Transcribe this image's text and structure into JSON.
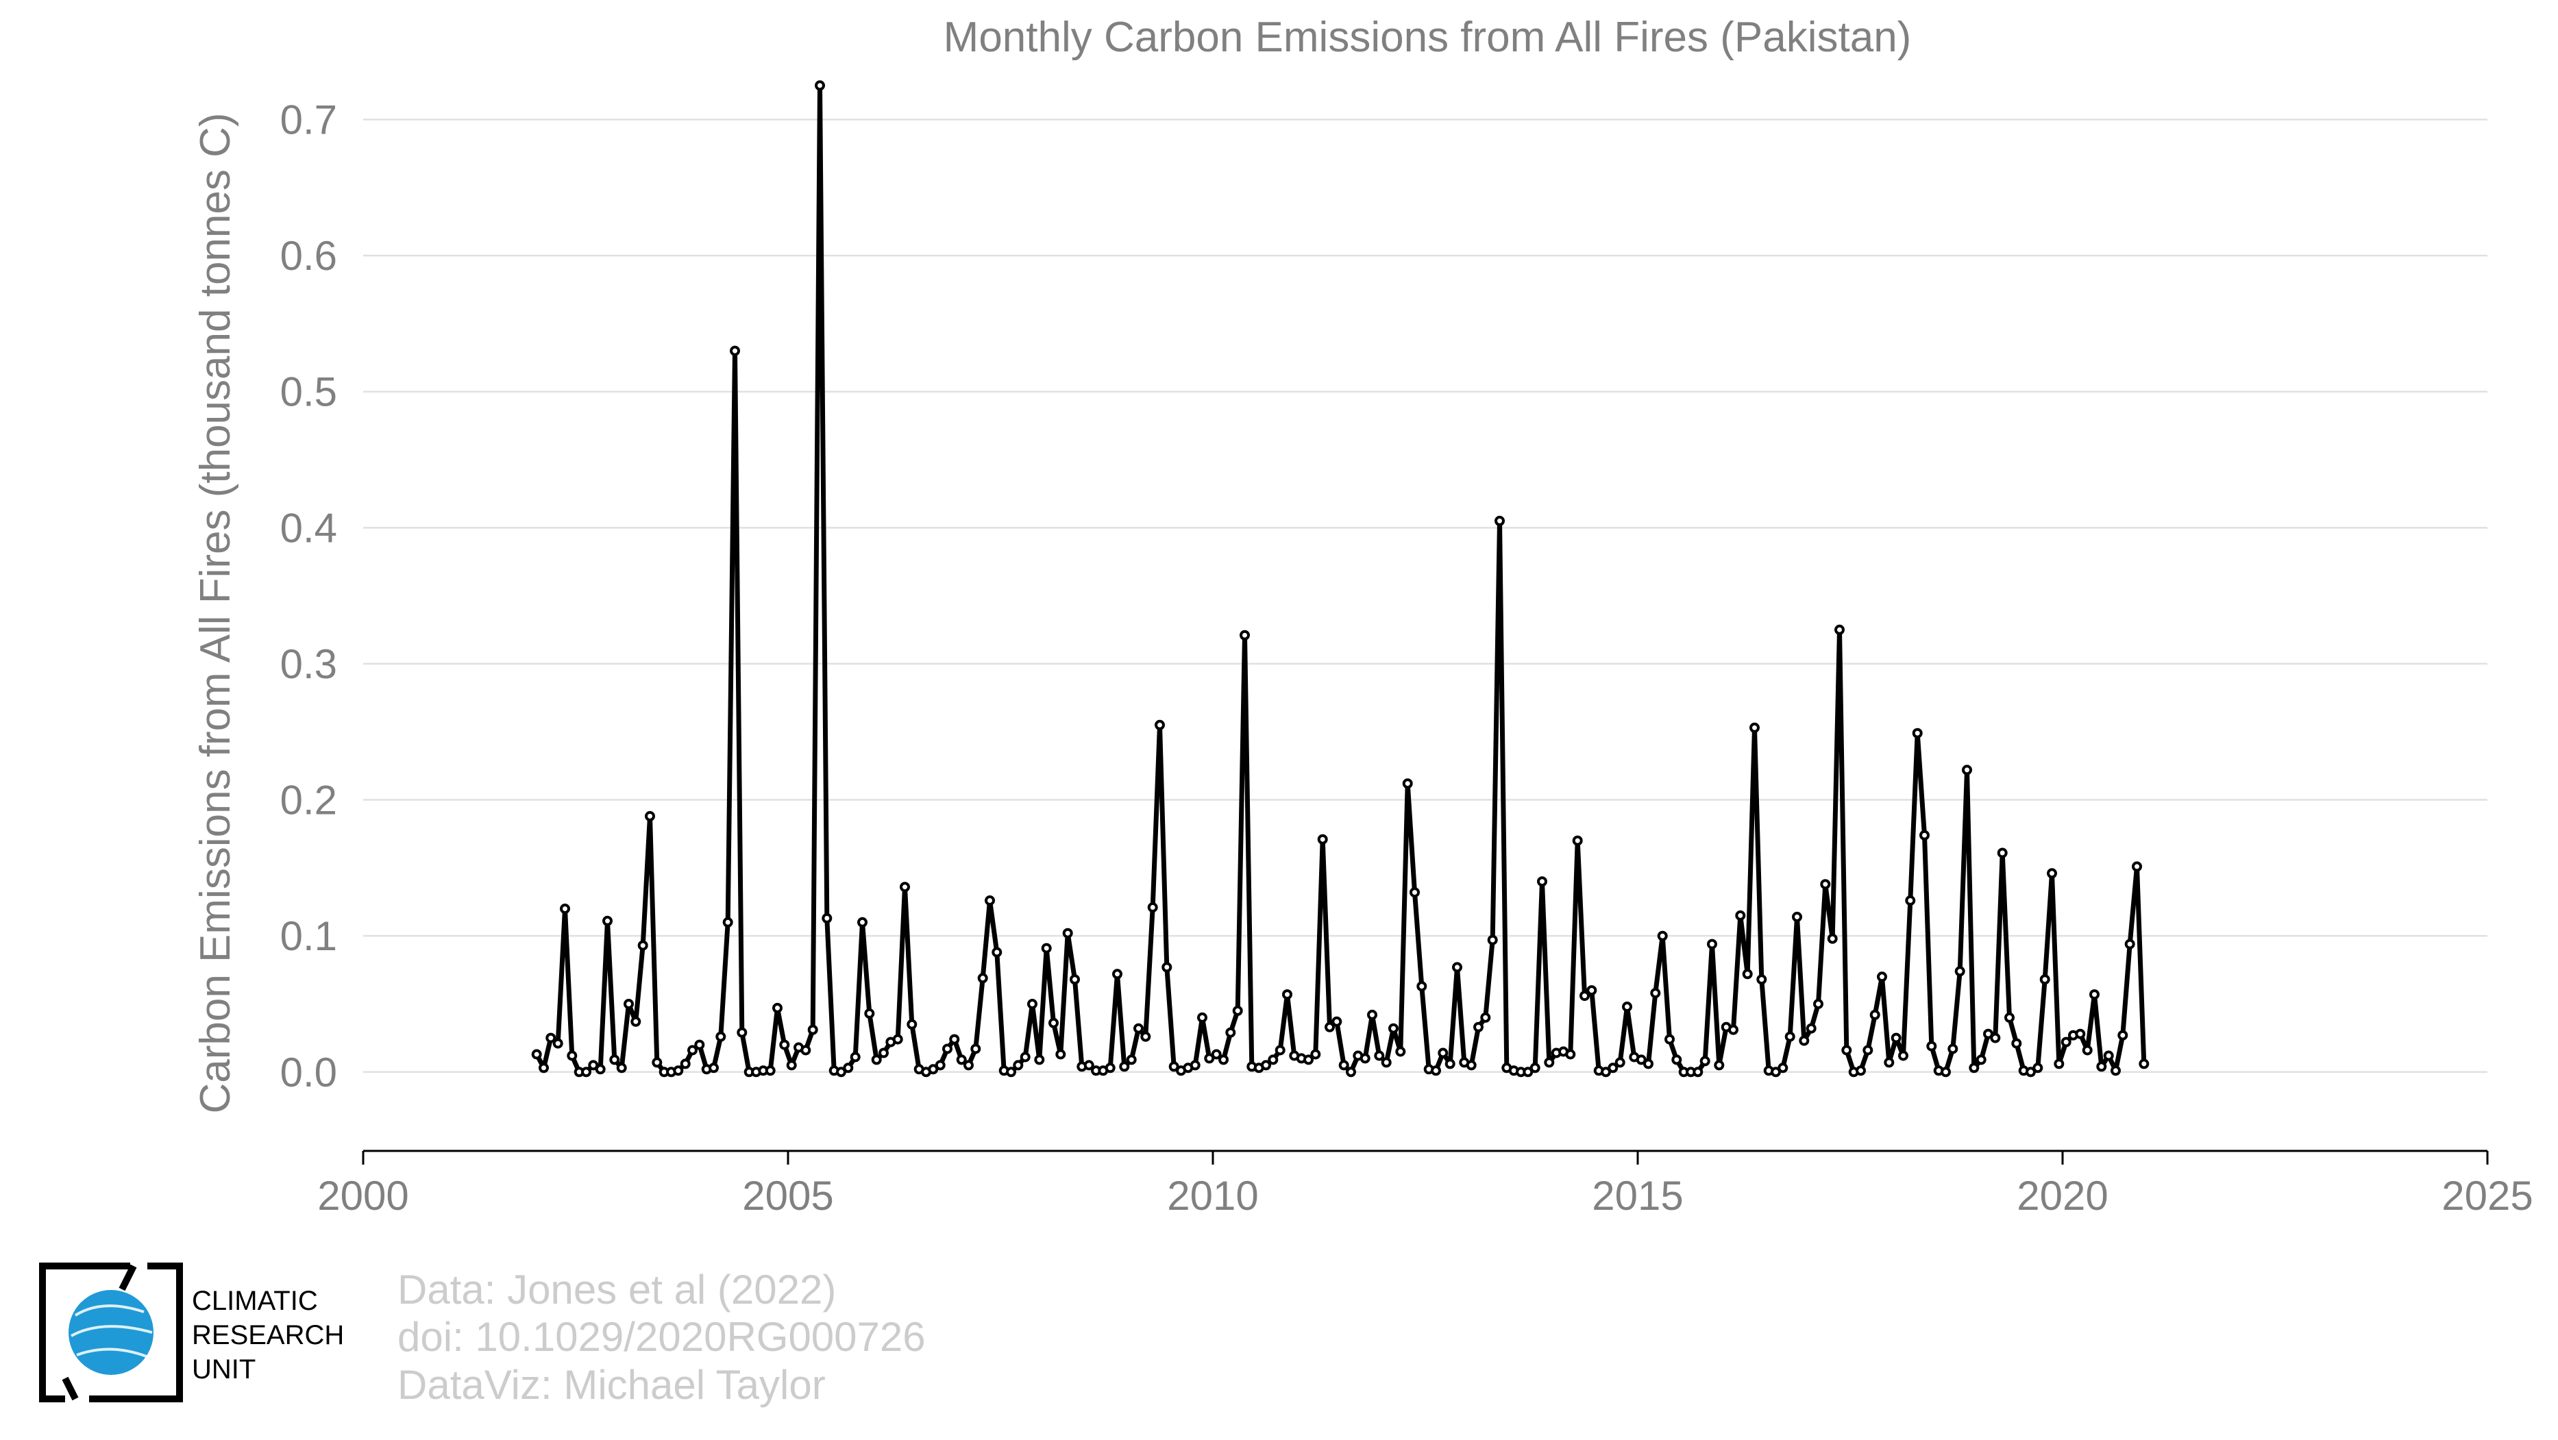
{
  "chart_data": {
    "type": "line",
    "title": "Monthly Carbon Emissions from All Fires (Pakistan)",
    "ylabel": "Carbon Emissions from All Fires (thousand tonnes C)",
    "xlabel": "",
    "xlim": [
      2000,
      2025
    ],
    "ylim": [
      -0.058,
      0.74
    ],
    "x_ticks": [
      2000,
      2005,
      2010,
      2015,
      2020,
      2025
    ],
    "x_tick_labels": [
      "2000",
      "2005",
      "2010",
      "2015",
      "2020",
      "2025"
    ],
    "y_ticks": [
      0.0,
      0.1,
      0.2,
      0.3,
      0.4,
      0.5,
      0.6,
      0.7
    ],
    "y_tick_labels": [
      "0.0",
      "0.1",
      "0.2",
      "0.3",
      "0.4",
      "0.5",
      "0.6",
      "0.7"
    ],
    "grid": true,
    "start_year": 2002,
    "values": [
      0.013,
      0.003,
      0.025,
      0.021,
      0.12,
      0.012,
      0.0,
      0.0,
      0.005,
      0.002,
      0.111,
      0.009,
      0.003,
      0.05,
      0.037,
      0.093,
      0.188,
      0.007,
      0.0,
      0.0,
      0.001,
      0.006,
      0.016,
      0.02,
      0.002,
      0.003,
      0.026,
      0.11,
      0.53,
      0.029,
      0.0,
      0.0,
      0.001,
      0.001,
      0.047,
      0.02,
      0.005,
      0.018,
      0.016,
      0.031,
      0.725,
      0.113,
      0.001,
      0.0,
      0.003,
      0.011,
      0.11,
      0.043,
      0.009,
      0.014,
      0.022,
      0.024,
      0.136,
      0.035,
      0.002,
      0.0,
      0.002,
      0.005,
      0.017,
      0.024,
      0.009,
      0.005,
      0.017,
      0.069,
      0.126,
      0.088,
      0.001,
      0.0,
      0.005,
      0.011,
      0.05,
      0.009,
      0.091,
      0.036,
      0.013,
      0.102,
      0.068,
      0.004,
      0.005,
      0.001,
      0.001,
      0.003,
      0.072,
      0.004,
      0.009,
      0.032,
      0.026,
      0.121,
      0.255,
      0.077,
      0.004,
      0.001,
      0.003,
      0.005,
      0.04,
      0.01,
      0.013,
      0.009,
      0.029,
      0.045,
      0.321,
      0.004,
      0.003,
      0.005,
      0.009,
      0.016,
      0.057,
      0.012,
      0.01,
      0.009,
      0.013,
      0.171,
      0.033,
      0.037,
      0.005,
      0.0,
      0.012,
      0.01,
      0.042,
      0.012,
      0.007,
      0.032,
      0.015,
      0.212,
      0.132,
      0.063,
      0.002,
      0.001,
      0.014,
      0.006,
      0.077,
      0.007,
      0.005,
      0.033,
      0.04,
      0.097,
      0.405,
      0.003,
      0.001,
      0.0,
      0.0,
      0.003,
      0.14,
      0.007,
      0.014,
      0.015,
      0.013,
      0.17,
      0.056,
      0.06,
      0.001,
      0.0,
      0.003,
      0.007,
      0.048,
      0.011,
      0.009,
      0.006,
      0.058,
      0.1,
      0.024,
      0.009,
      0.0,
      0.0,
      0.0,
      0.008,
      0.094,
      0.005,
      0.033,
      0.031,
      0.115,
      0.072,
      0.253,
      0.068,
      0.001,
      0.0,
      0.003,
      0.026,
      0.114,
      0.023,
      0.032,
      0.05,
      0.138,
      0.098,
      0.325,
      0.016,
      0.0,
      0.001,
      0.016,
      0.042,
      0.07,
      0.007,
      0.025,
      0.012,
      0.126,
      0.249,
      0.174,
      0.019,
      0.001,
      0.0,
      0.017,
      0.074,
      0.222,
      0.003,
      0.009,
      0.028,
      0.025,
      0.161,
      0.04,
      0.021,
      0.001,
      0.0,
      0.003,
      0.068,
      0.146,
      0.006,
      0.022,
      0.027,
      0.028,
      0.016,
      0.057,
      0.004,
      0.012,
      0.001,
      0.027,
      0.094,
      0.151,
      0.006
    ]
  },
  "credits": {
    "line1": "Data: Jones et al (2022)",
    "line2": "doi: 10.1029/2020RG000726",
    "line3": "DataViz: Michael Taylor"
  },
  "logo": {
    "line1": "CLIMATIC",
    "line2": "RESEARCH",
    "line3": "UNIT",
    "globe_color": "#1f9ad6"
  }
}
